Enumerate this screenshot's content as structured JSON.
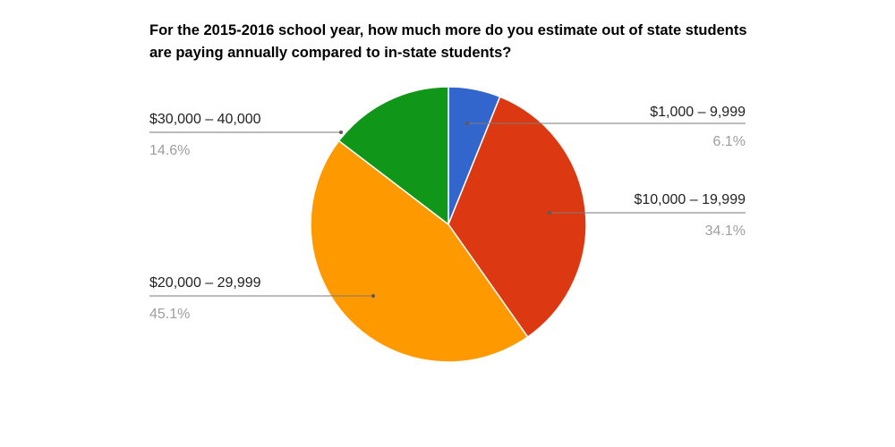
{
  "chart_data": {
    "type": "pie",
    "title": "For the 2015-2016 school year, how much more do you estimate out of state students are paying annually compared to in-state students?",
    "legend": "none",
    "slices": [
      {
        "label": "$1,000 – 9,999",
        "percent_label": "6.1%",
        "value": 6.1,
        "color": "#3366cc"
      },
      {
        "label": "$10,000 – 19,999",
        "percent_label": "34.1%",
        "value": 34.1,
        "color": "#dc3912"
      },
      {
        "label": "$20,000 – 29,999",
        "percent_label": "45.1%",
        "value": 45.1,
        "color": "#ff9900"
      },
      {
        "label": "$30,000 – 40,000",
        "percent_label": "14.6%",
        "value": 14.6,
        "color": "#109618"
      }
    ]
  }
}
